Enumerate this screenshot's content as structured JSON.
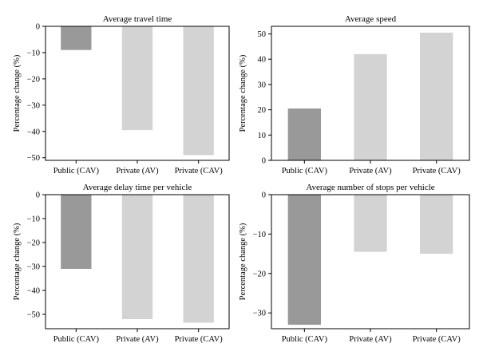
{
  "chart_data": [
    {
      "type": "bar",
      "title": "Average travel time",
      "ylabel": "Percentage change (%)",
      "xlabel": "",
      "categories": [
        "Public (CAV)",
        "Private (AV)",
        "Private (CAV)"
      ],
      "values": [
        -9,
        -39.5,
        -49
      ],
      "ylim": [
        -51,
        0
      ],
      "yticks": [
        0,
        -10,
        -20,
        -30,
        -40,
        -50
      ],
      "bar_colors": [
        "#999999",
        "#d3d3d3",
        "#d3d3d3"
      ],
      "grid": false
    },
    {
      "type": "bar",
      "title": "Average speed",
      "ylabel": "Percentage change (%)",
      "xlabel": "",
      "categories": [
        "Public (CAV)",
        "Private (AV)",
        "Private (CAV)"
      ],
      "values": [
        20.5,
        42,
        50.5
      ],
      "ylim": [
        0,
        53
      ],
      "yticks": [
        0,
        10,
        20,
        30,
        40,
        50
      ],
      "bar_colors": [
        "#999999",
        "#d3d3d3",
        "#d3d3d3"
      ],
      "grid": false
    },
    {
      "type": "bar",
      "title": "Average delay time per vehicle",
      "ylabel": "Percentage change (%)",
      "xlabel": "",
      "categories": [
        "Public (CAV)",
        "Private (AV)",
        "Private (CAV)"
      ],
      "values": [
        -31,
        -52,
        -53.5
      ],
      "ylim": [
        -56,
        0
      ],
      "yticks": [
        0,
        -10,
        -20,
        -30,
        -40,
        -50
      ],
      "bar_colors": [
        "#999999",
        "#d3d3d3",
        "#d3d3d3"
      ],
      "grid": false
    },
    {
      "type": "bar",
      "title": "Average number of stops per vehicle",
      "ylabel": "Percentage change (%)",
      "xlabel": "",
      "categories": [
        "Public (CAV)",
        "Private (AV)",
        "Private (CAV)"
      ],
      "values": [
        -33,
        -14.5,
        -15
      ],
      "ylim": [
        -34,
        0
      ],
      "yticks": [
        0,
        -10,
        -20,
        -30
      ],
      "bar_colors": [
        "#999999",
        "#d3d3d3",
        "#d3d3d3"
      ],
      "grid": false
    }
  ]
}
